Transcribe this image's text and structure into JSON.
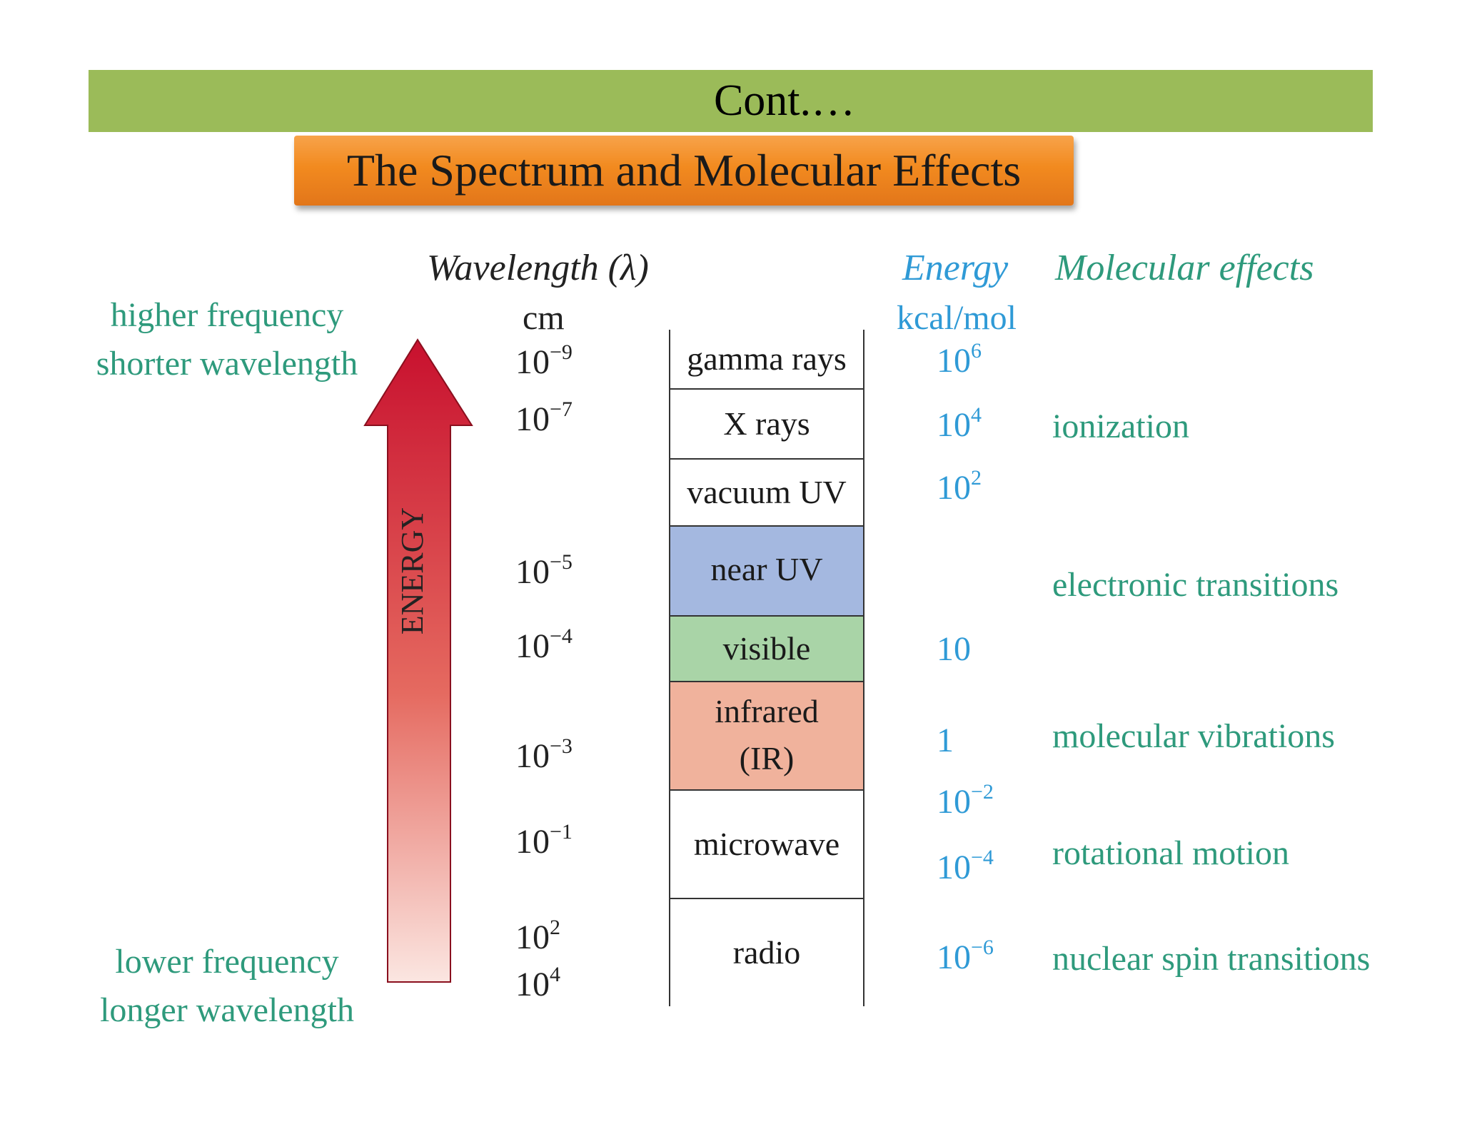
{
  "header": {
    "title": "Cont.…"
  },
  "banner": {
    "title": "The Spectrum and Molecular Effects"
  },
  "columns": {
    "wavelength": "Wavelength (λ)",
    "wavelength_unit": "cm",
    "energy": "Energy",
    "energy_unit": "kcal/mol",
    "effects": "Molecular effects"
  },
  "side_labels": {
    "top_line1": "higher frequency",
    "top_line2": "shorter wavelength",
    "bottom_line1": "lower frequency",
    "bottom_line2": "longer wavelength"
  },
  "arrow": {
    "label": "ENERGY"
  },
  "bands": [
    {
      "name": "gamma rays",
      "color": "#ffffff"
    },
    {
      "name": "X rays",
      "color": "#ffffff"
    },
    {
      "name": "vacuum UV",
      "color": "#ffffff"
    },
    {
      "name": "near UV",
      "color": "#a4b8e0"
    },
    {
      "name": "visible",
      "color": "#a9d4a7"
    },
    {
      "name": "infrared",
      "name2": "(IR)",
      "color": "#f0b29c"
    },
    {
      "name": "microwave",
      "color": "#ffffff"
    },
    {
      "name": "radio",
      "color": "#ffffff"
    }
  ],
  "wavelengths": [
    {
      "base": "10",
      "exp": "−9"
    },
    {
      "base": "10",
      "exp": "−7"
    },
    {
      "base": "10",
      "exp": "−5"
    },
    {
      "base": "10",
      "exp": "−4"
    },
    {
      "base": "10",
      "exp": "−3"
    },
    {
      "base": "10",
      "exp": "−1"
    },
    {
      "base": "10",
      "exp": "2"
    },
    {
      "base": "10",
      "exp": "4"
    }
  ],
  "energies": [
    {
      "base": "10",
      "exp": "6"
    },
    {
      "base": "10",
      "exp": "4"
    },
    {
      "base": "10",
      "exp": "2"
    },
    {
      "base": "10",
      "exp": ""
    },
    {
      "base": "1",
      "exp": ""
    },
    {
      "base": "10",
      "exp": "−2"
    },
    {
      "base": "10",
      "exp": "−4"
    },
    {
      "base": "10",
      "exp": "−6"
    }
  ],
  "effects": [
    "ionization",
    "electronic transitions",
    "molecular vibrations",
    "rotational motion",
    "nuclear spin transitions"
  ]
}
